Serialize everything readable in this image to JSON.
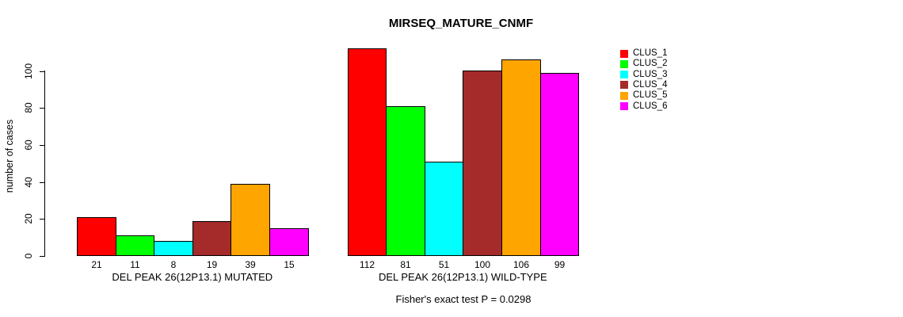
{
  "chart_data": {
    "type": "bar",
    "title": "MIRSEQ_MATURE_CNMF",
    "xlabel": "",
    "ylabel": "number of cases",
    "ylim": [
      0,
      117
    ],
    "yticks": [
      0,
      20,
      40,
      60,
      80,
      100
    ],
    "grid": false,
    "legend_position": "top-right",
    "categories": [
      "DEL PEAK 26(12P13.1) MUTATED",
      "DEL PEAK 26(12P13.1) WILD-TYPE"
    ],
    "series": [
      {
        "name": "CLUS_1",
        "color": "#FF0000",
        "values": [
          21,
          112
        ]
      },
      {
        "name": "CLUS_2",
        "color": "#00FF00",
        "values": [
          11,
          81
        ]
      },
      {
        "name": "CLUS_3",
        "color": "#00FFFF",
        "values": [
          8,
          51
        ]
      },
      {
        "name": "CLUS_4",
        "color": "#A52A2A",
        "values": [
          19,
          100
        ]
      },
      {
        "name": "CLUS_5",
        "color": "#FFA500",
        "values": [
          39,
          106
        ]
      },
      {
        "name": "CLUS_6",
        "color": "#FF00FF",
        "values": [
          15,
          99
        ]
      }
    ],
    "bar_value_labels_shown": true,
    "annotation": "Fisher's exact test P = 0.0298"
  }
}
